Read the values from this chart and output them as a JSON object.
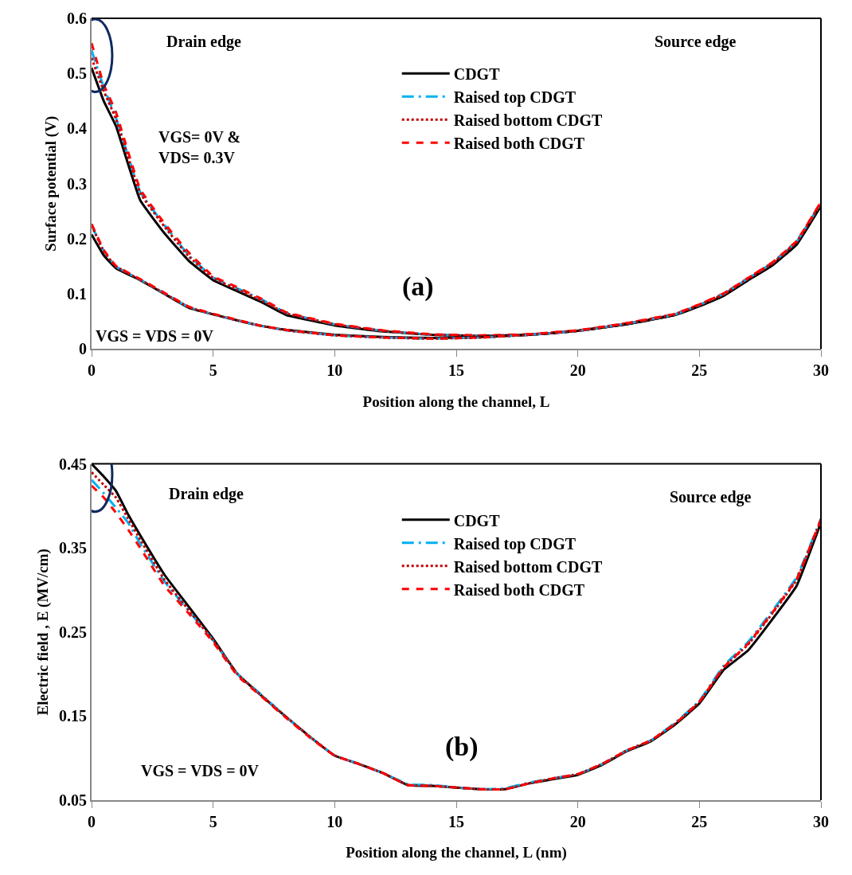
{
  "chart_data": [
    {
      "type": "line",
      "xlabel": "Position along the channel, L",
      "ylabel": "Surface potential (V)",
      "x": [
        0,
        0.5,
        1,
        2,
        3,
        4,
        5,
        6,
        7,
        8,
        10,
        12,
        14,
        16,
        18,
        20,
        22,
        24,
        25,
        26,
        27,
        28,
        29,
        30
      ],
      "xlim": [
        0,
        30
      ],
      "xticks": [
        0,
        5,
        10,
        15,
        20,
        25,
        30
      ],
      "ylim": [
        0,
        0.6
      ],
      "yticks": [
        0,
        0.1,
        0.2,
        0.3,
        0.4,
        0.5,
        0.6
      ],
      "legend": "top",
      "annotations": [
        "Drain edge",
        "Source edge",
        "VGS= 0V &\nVDS= 0.3V",
        "VGS = VDS = 0V",
        "(a)"
      ],
      "series": [
        {
          "name": "CDGT",
          "color": "#000000",
          "line_style": "solid",
          "values": [
            0.51,
            0.45,
            0.405,
            0.27,
            0.21,
            0.16,
            0.125,
            0.105,
            0.085,
            0.062,
            0.043,
            0.032,
            0.026,
            0.024,
            0.026,
            0.033,
            0.045,
            0.062,
            0.078,
            0.097,
            0.125,
            0.152,
            0.19,
            0.26
          ]
        },
        {
          "name": "Raised top CDGT",
          "color": "#00b0f0",
          "line_style": "dashdot",
          "values": [
            0.542,
            0.475,
            0.42,
            0.285,
            0.225,
            0.17,
            0.13,
            0.11,
            0.09,
            0.066,
            0.045,
            0.033,
            0.026,
            0.024,
            0.026,
            0.033,
            0.046,
            0.063,
            0.08,
            0.1,
            0.128,
            0.156,
            0.195,
            0.265
          ]
        },
        {
          "name": "Raised bottom CDGT",
          "color": "#c00000",
          "line_style": "dotted",
          "values": [
            0.528,
            0.468,
            0.418,
            0.283,
            0.222,
            0.168,
            0.129,
            0.108,
            0.088,
            0.065,
            0.045,
            0.033,
            0.026,
            0.024,
            0.026,
            0.033,
            0.046,
            0.063,
            0.08,
            0.099,
            0.127,
            0.155,
            0.194,
            0.264
          ]
        },
        {
          "name": "Raised both CDGT",
          "color": "#ff0000",
          "line_style": "dashed",
          "values": [
            0.555,
            0.48,
            0.43,
            0.29,
            0.228,
            0.175,
            0.132,
            0.112,
            0.091,
            0.067,
            0.046,
            0.034,
            0.027,
            0.025,
            0.027,
            0.034,
            0.047,
            0.064,
            0.081,
            0.101,
            0.129,
            0.157,
            0.196,
            0.267
          ]
        },
        {
          "color": "#000000",
          "line_style": "solid",
          "values": [
            0.208,
            0.17,
            0.147,
            0.125,
            0.1,
            0.075,
            0.063,
            0.052,
            0.042,
            0.035,
            0.026,
            0.022,
            0.02,
            0.022,
            0.026,
            0.033,
            0.045,
            0.062,
            0.078,
            0.097,
            0.125,
            0.152,
            0.19,
            0.26
          ]
        },
        {
          "color": "#00b0f0",
          "line_style": "dashdot",
          "values": [
            0.225,
            0.178,
            0.15,
            0.126,
            0.101,
            0.076,
            0.063,
            0.052,
            0.042,
            0.034,
            0.025,
            0.021,
            0.019,
            0.021,
            0.026,
            0.033,
            0.046,
            0.063,
            0.08,
            0.1,
            0.128,
            0.156,
            0.195,
            0.265
          ]
        },
        {
          "color": "#c00000",
          "line_style": "dotted",
          "values": [
            0.225,
            0.177,
            0.15,
            0.126,
            0.101,
            0.076,
            0.063,
            0.052,
            0.042,
            0.034,
            0.025,
            0.021,
            0.019,
            0.021,
            0.026,
            0.033,
            0.046,
            0.063,
            0.08,
            0.099,
            0.127,
            0.155,
            0.194,
            0.264
          ]
        },
        {
          "color": "#ff0000",
          "line_style": "dashed",
          "values": [
            0.227,
            0.18,
            0.151,
            0.127,
            0.102,
            0.077,
            0.064,
            0.053,
            0.042,
            0.035,
            0.025,
            0.021,
            0.019,
            0.021,
            0.027,
            0.034,
            0.047,
            0.064,
            0.081,
            0.101,
            0.129,
            0.157,
            0.196,
            0.267
          ]
        }
      ]
    },
    {
      "type": "line",
      "xlabel": "Position along the channel, L (nm)",
      "ylabel": "Electric field , E (MV/cm)",
      "x": [
        0,
        0.5,
        1,
        1.5,
        2,
        3,
        4,
        5,
        6,
        7,
        8,
        9,
        10,
        11,
        12,
        13,
        14,
        15,
        16,
        17,
        18,
        19,
        20,
        21,
        22,
        23,
        24,
        25,
        26,
        27,
        28,
        29,
        30
      ],
      "xlim": [
        0,
        30
      ],
      "xticks": [
        0,
        5,
        10,
        15,
        20,
        25,
        30
      ],
      "ylim": [
        0.05,
        0.45
      ],
      "yticks": [
        0.05,
        0.15,
        0.25,
        0.35,
        0.45
      ],
      "legend": "top",
      "annotations": [
        "Drain edge",
        "Source edge",
        "VGS = VDS = 0V",
        "(b)"
      ],
      "series": [
        {
          "name": "CDGT",
          "color": "#000000",
          "line_style": "solid",
          "values": [
            0.45,
            0.435,
            0.418,
            0.39,
            0.365,
            0.318,
            0.28,
            0.242,
            0.2,
            0.174,
            0.149,
            0.125,
            0.103,
            0.093,
            0.082,
            0.068,
            0.067,
            0.065,
            0.063,
            0.063,
            0.07,
            0.075,
            0.08,
            0.092,
            0.108,
            0.12,
            0.14,
            0.165,
            0.205,
            0.228,
            0.265,
            0.305,
            0.38
          ]
        },
        {
          "name": "Raised top CDGT",
          "color": "#00b0f0",
          "line_style": "dashdot",
          "values": [
            0.431,
            0.415,
            0.398,
            0.38,
            0.355,
            0.31,
            0.275,
            0.24,
            0.2,
            0.175,
            0.149,
            0.125,
            0.103,
            0.093,
            0.082,
            0.069,
            0.068,
            0.065,
            0.063,
            0.064,
            0.071,
            0.076,
            0.081,
            0.093,
            0.109,
            0.121,
            0.142,
            0.168,
            0.21,
            0.238,
            0.275,
            0.315,
            0.385
          ]
        },
        {
          "name": "Raised bottom CDGT",
          "color": "#c00000",
          "line_style": "dotted",
          "values": [
            0.44,
            0.425,
            0.41,
            0.385,
            0.36,
            0.312,
            0.276,
            0.24,
            0.2,
            0.174,
            0.149,
            0.125,
            0.103,
            0.093,
            0.082,
            0.068,
            0.067,
            0.065,
            0.063,
            0.063,
            0.07,
            0.076,
            0.081,
            0.093,
            0.109,
            0.121,
            0.141,
            0.167,
            0.208,
            0.235,
            0.272,
            0.312,
            0.383
          ]
        },
        {
          "name": "Raised both CDGT",
          "color": "#ff0000",
          "line_style": "dashed",
          "values": [
            0.424,
            0.41,
            0.392,
            0.372,
            0.35,
            0.305,
            0.272,
            0.238,
            0.198,
            0.173,
            0.148,
            0.124,
            0.103,
            0.093,
            0.082,
            0.068,
            0.067,
            0.065,
            0.063,
            0.063,
            0.07,
            0.076,
            0.081,
            0.093,
            0.109,
            0.121,
            0.141,
            0.167,
            0.208,
            0.236,
            0.273,
            0.313,
            0.384
          ]
        }
      ]
    }
  ]
}
